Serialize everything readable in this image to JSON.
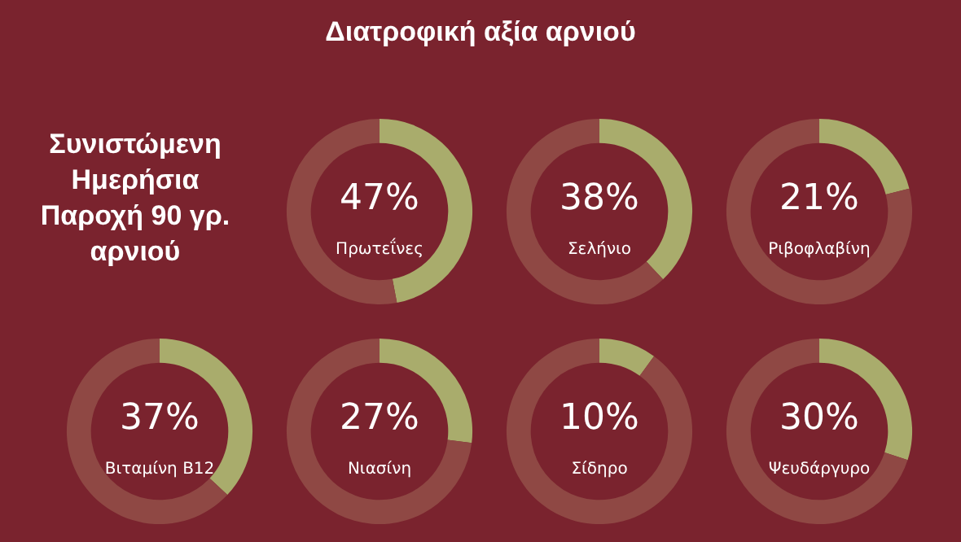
{
  "chart_data": [
    {
      "type": "other",
      "title": "Διατροφική αξία αρνιού",
      "annotations": [
        "Συνιστώμενη Ημερήσια Παροχή 90 γρ. αρνιού"
      ]
    },
    {
      "type": "donut",
      "title": "Πρωτεΐνες",
      "categories": [
        null,
        null
      ],
      "values": [
        47,
        53
      ],
      "colors": [
        "#a9ac6c",
        "#8f4844"
      ],
      "value_labels": [
        "47%",
        null
      ]
    },
    {
      "type": "donut",
      "title": "Σελήνιο",
      "categories": [
        null,
        null
      ],
      "values": [
        38,
        62
      ],
      "colors": [
        "#a9ac6c",
        "#8f4844"
      ],
      "value_labels": [
        "38%",
        null
      ]
    },
    {
      "type": "donut",
      "title": "Ριβοφλαβίνη",
      "categories": [
        null,
        null
      ],
      "values": [
        21,
        79
      ],
      "colors": [
        "#a9ac6c",
        "#8f4844"
      ],
      "value_labels": [
        "21%",
        null
      ]
    },
    {
      "type": "donut",
      "title": "Βιταμίνη Β12",
      "categories": [
        null,
        null
      ],
      "values": [
        37,
        63
      ],
      "colors": [
        "#a9ac6c",
        "#8f4844"
      ],
      "value_labels": [
        "37%",
        null
      ]
    },
    {
      "type": "donut",
      "title": "Νιασίνη",
      "categories": [
        null,
        null
      ],
      "values": [
        27,
        73
      ],
      "colors": [
        "#a9ac6c",
        "#8f4844"
      ],
      "value_labels": [
        "27%",
        null
      ]
    },
    {
      "type": "donut",
      "title": "Σίδηρο",
      "categories": [
        null,
        null
      ],
      "values": [
        10,
        90
      ],
      "colors": [
        "#a9ac6c",
        "#8f4844"
      ],
      "value_labels": [
        "10%",
        null
      ]
    },
    {
      "type": "donut",
      "title": "Ψευδάργυρο",
      "categories": [
        null,
        null
      ],
      "values": [
        30,
        70
      ],
      "colors": [
        "#a9ac6c",
        "#8f4844"
      ],
      "value_labels": [
        "30%",
        null
      ]
    }
  ]
}
